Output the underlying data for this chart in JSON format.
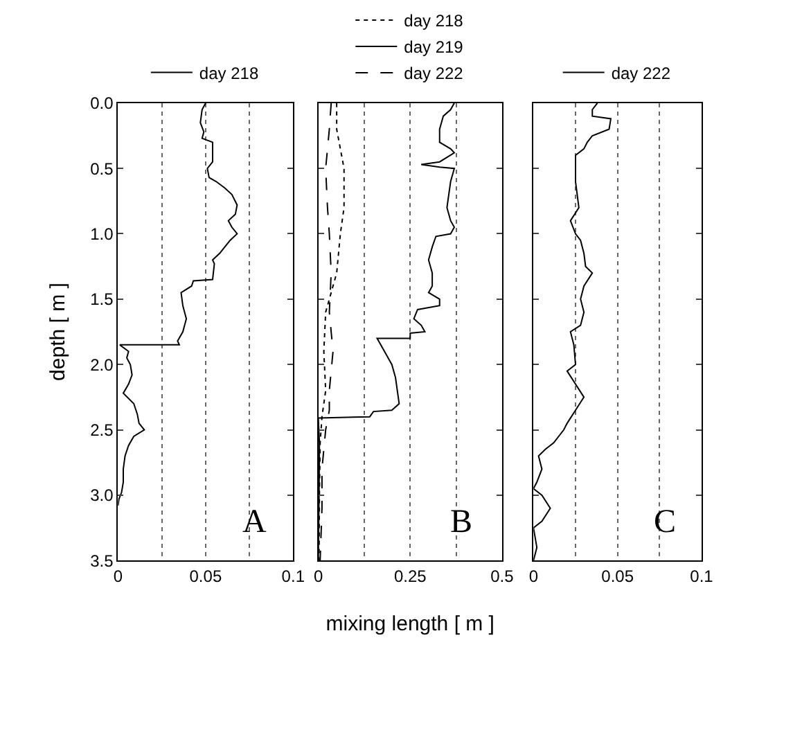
{
  "chart_data": [
    {
      "type": "line",
      "ylabel": "depth [ m ]",
      "annotations": [
        "A"
      ],
      "legend": "top",
      "grid": "x",
      "xlim": [
        0,
        0.1
      ],
      "xticks": [
        0,
        {
          "value": 0.025,
          "label": null
        },
        0.05,
        {
          "value": 0.075,
          "label": null
        },
        0.1
      ],
      "ylim": [
        3.5,
        0
      ],
      "yticks": [
        {
          "value": 0,
          "label": "0.0"
        },
        0.5,
        {
          "value": 1,
          "label": "1.0"
        },
        1.5,
        {
          "value": 2,
          "label": "2.0"
        },
        2.5,
        {
          "value": 3,
          "label": "3.0"
        },
        3.5
      ],
      "series": [
        {
          "name": "day 218",
          "color": "#000000",
          "line_style": "solid",
          "x": [
            0.05,
            0.048,
            0.047,
            0.049,
            0.048,
            0.054,
            0.054,
            0.051,
            0.052,
            0.056,
            0.061,
            0.065,
            0.068,
            0.067,
            0.063,
            0.065,
            0.068,
            0.064,
            0.061,
            0.058,
            0.054,
            0.055,
            0.054,
            0.043,
            0.042,
            0.036,
            0.037,
            0.039,
            0.037,
            0.034,
            0.035,
            0.001,
            0.006,
            0.005,
            0.007,
            0.008,
            0.006,
            0.003,
            0.009,
            0.011,
            0.012,
            0.015,
            0.009,
            0.006,
            0.004,
            0.003,
            0.003,
            0.002,
            0.0005,
            0
          ],
          "values": [
            0,
            0.05,
            0.15,
            0.22,
            0.27,
            0.3,
            0.45,
            0.5,
            0.57,
            0.6,
            0.65,
            0.7,
            0.78,
            0.85,
            0.9,
            0.95,
            1.0,
            1.05,
            1.1,
            1.15,
            1.2,
            1.23,
            1.35,
            1.36,
            1.4,
            1.45,
            1.55,
            1.65,
            1.75,
            1.82,
            1.85,
            1.85,
            1.9,
            1.95,
            2.0,
            2.08,
            2.15,
            2.22,
            2.3,
            2.38,
            2.45,
            2.5,
            2.55,
            2.62,
            2.7,
            2.8,
            2.9,
            2.98,
            3.03,
            3.08
          ]
        }
      ]
    },
    {
      "type": "line",
      "xlabel": "mixing length [ m ]",
      "annotations": [
        "B"
      ],
      "legend": "top",
      "grid": "x",
      "tick_labels": "x",
      "xlim": [
        0,
        0.5
      ],
      "xticks": [
        0,
        {
          "value": 0.125,
          "label": null
        },
        0.25,
        {
          "value": 0.375,
          "label": null
        },
        0.5
      ],
      "ylim": [
        3.5,
        0
      ],
      "yticks": [
        {
          "value": 0,
          "label": null
        },
        {
          "value": 0.5,
          "label": null
        },
        {
          "value": 1,
          "label": null
        },
        {
          "value": 1.5,
          "label": null
        },
        {
          "value": 2,
          "label": null
        },
        {
          "value": 2.5,
          "label": null
        },
        {
          "value": 3,
          "label": null
        },
        {
          "value": 3.5,
          "label": null
        }
      ],
      "series": [
        {
          "name": "day 218",
          "color": "#000000",
          "line_style": "dotted",
          "x": [
            0.05,
            0.05,
            0.07,
            0.07,
            0.06,
            0.05,
            0.02,
            0.015,
            0.02,
            0.01,
            0.005,
            0.003,
            0.002
          ],
          "values": [
            0,
            0.2,
            0.5,
            0.8,
            1.0,
            1.3,
            1.6,
            1.9,
            2.2,
            2.4,
            2.6,
            3.0,
            3.5
          ]
        },
        {
          "name": "day 219",
          "color": "#000000",
          "line_style": "solid",
          "x": [
            0.37,
            0.36,
            0.34,
            0.33,
            0.33,
            0.36,
            0.37,
            0.33,
            0.28,
            0.33,
            0.37,
            0.36,
            0.35,
            0.36,
            0.37,
            0.36,
            0.32,
            0.31,
            0.3,
            0.31,
            0.31,
            0.3,
            0.33,
            0.33,
            0.27,
            0.26,
            0.28,
            0.29,
            0.25,
            0.25,
            0.16,
            0.18,
            0.2,
            0.21,
            0.22,
            0.2,
            0.15,
            0.14,
            0.0,
            0.003,
            0.002,
            0.0
          ],
          "values": [
            0,
            0.05,
            0.1,
            0.2,
            0.3,
            0.35,
            0.38,
            0.45,
            0.47,
            0.49,
            0.5,
            0.6,
            0.8,
            0.9,
            0.95,
            1.0,
            1.02,
            1.1,
            1.2,
            1.3,
            1.4,
            1.45,
            1.5,
            1.55,
            1.58,
            1.65,
            1.7,
            1.75,
            1.76,
            1.8,
            1.8,
            1.9,
            2.0,
            2.1,
            2.3,
            2.35,
            2.36,
            2.4,
            2.41,
            2.6,
            3.0,
            3.5
          ]
        },
        {
          "name": "day 222",
          "color": "#000000",
          "line_style": "dashed",
          "x": [
            0.035,
            0.03,
            0.02,
            0.025,
            0.03,
            0.035,
            0.03,
            0.04,
            0.03,
            0.03,
            0.02,
            0.01,
            0.01,
            0.005
          ],
          "values": [
            0,
            0.2,
            0.5,
            0.8,
            1.0,
            1.3,
            1.6,
            1.9,
            2.2,
            2.35,
            2.5,
            2.8,
            3.1,
            3.5
          ]
        }
      ]
    },
    {
      "type": "line",
      "annotations": [
        "C"
      ],
      "legend": "top",
      "grid": "x",
      "tick_labels": "x",
      "xlim": [
        0,
        0.1
      ],
      "xticks": [
        0,
        {
          "value": 0.025,
          "label": null
        },
        0.05,
        {
          "value": 0.075,
          "label": null
        },
        0.1
      ],
      "ylim": [
        3.5,
        0
      ],
      "yticks": [
        {
          "value": 0,
          "label": null
        },
        {
          "value": 0.5,
          "label": null
        },
        {
          "value": 1,
          "label": null
        },
        {
          "value": 1.5,
          "label": null
        },
        {
          "value": 2,
          "label": null
        },
        {
          "value": 2.5,
          "label": null
        },
        {
          "value": 3,
          "label": null
        },
        {
          "value": 3.5,
          "label": null
        }
      ],
      "series": [
        {
          "name": "day 222",
          "color": "#000000",
          "line_style": "solid",
          "x": [
            0.038,
            0.035,
            0.035,
            0.046,
            0.045,
            0.035,
            0.032,
            0.03,
            0.025,
            0.025,
            0.027,
            0.022,
            0.025,
            0.028,
            0.03,
            0.031,
            0.035,
            0.03,
            0.028,
            0.03,
            0.028,
            0.022,
            0.024,
            0.025,
            0.02,
            0.025,
            0.03,
            0.025,
            0.02,
            0.018,
            0.012,
            0.007,
            0.003,
            0.005,
            0.002,
            0.0,
            0.005,
            0.01,
            0.005,
            0.0,
            0.002,
            0.0
          ],
          "values": [
            0,
            0.05,
            0.1,
            0.12,
            0.2,
            0.25,
            0.3,
            0.35,
            0.4,
            0.6,
            0.8,
            0.9,
            1.0,
            1.05,
            1.15,
            1.25,
            1.3,
            1.4,
            1.5,
            1.6,
            1.7,
            1.75,
            1.85,
            2.0,
            2.05,
            2.15,
            2.25,
            2.35,
            2.45,
            2.5,
            2.6,
            2.65,
            2.7,
            2.8,
            2.9,
            2.95,
            3.0,
            3.1,
            3.2,
            3.25,
            3.4,
            3.5
          ]
        }
      ]
    }
  ]
}
